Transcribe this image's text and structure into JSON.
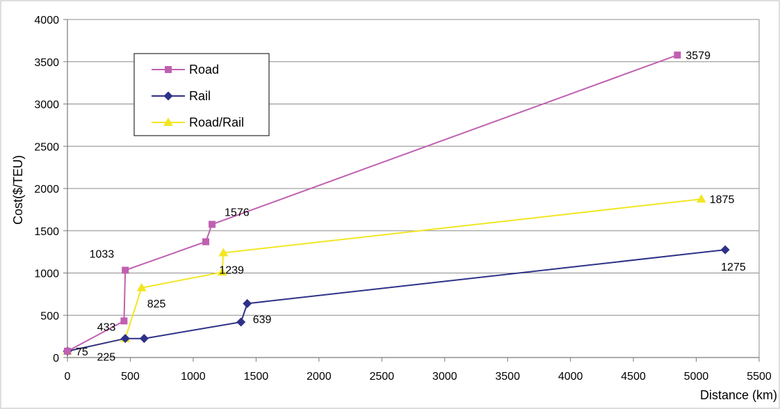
{
  "chart_data": {
    "type": "line",
    "xlabel": "Distance (km)",
    "ylabel": "Cost($/TEU)",
    "xlim": [
      0,
      5500
    ],
    "ylim": [
      0,
      4000
    ],
    "xticks": [
      "0",
      "500",
      "1000",
      "1500",
      "2000",
      "2500",
      "3000",
      "3500",
      "4000",
      "4500",
      "5000",
      "5500"
    ],
    "yticks": [
      "0",
      "500",
      "1000",
      "1500",
      "2000",
      "2500",
      "3000",
      "3500",
      "4000"
    ],
    "grid": "horizontal",
    "legend_position": "top-left",
    "series": [
      {
        "name": "Road",
        "color": "#c060b0",
        "marker": "square",
        "points": [
          {
            "x": 0,
            "y": 75
          },
          {
            "x": 450,
            "y": 433
          },
          {
            "x": 460,
            "y": 1033
          },
          {
            "x": 1100,
            "y": 1370
          },
          {
            "x": 1150,
            "y": 1576
          },
          {
            "x": 4850,
            "y": 3579
          }
        ]
      },
      {
        "name": "Rail",
        "color": "#2e3188",
        "marker": "diamond",
        "points": [
          {
            "x": 0,
            "y": 75
          },
          {
            "x": 460,
            "y": 225
          },
          {
            "x": 610,
            "y": 225
          },
          {
            "x": 1380,
            "y": 420
          },
          {
            "x": 1430,
            "y": 639
          },
          {
            "x": 5230,
            "y": 1275
          }
        ]
      },
      {
        "name": "Road/Rail",
        "color": "#f2e623",
        "marker": "triangle",
        "points": [
          {
            "x": 0,
            "y": 75
          },
          {
            "x": 460,
            "y": 225
          },
          {
            "x": 590,
            "y": 825
          },
          {
            "x": 1230,
            "y": 1010
          },
          {
            "x": 1240,
            "y": 1239
          },
          {
            "x": 5040,
            "y": 1875
          }
        ]
      }
    ],
    "annotations": [
      {
        "text": "3579",
        "x": 4850,
        "y": 3579,
        "anchor": "right"
      },
      {
        "text": "1875",
        "x": 5040,
        "y": 1875,
        "anchor": "right"
      },
      {
        "text": "1576",
        "x": 1150,
        "y": 1576,
        "anchor": "above-right"
      },
      {
        "text": "1033",
        "x": 460,
        "y": 1033,
        "anchor": "above-left"
      },
      {
        "text": "1239",
        "x": 1240,
        "y": 1239,
        "anchor": "below"
      },
      {
        "text": "1275",
        "x": 5230,
        "y": 1275,
        "anchor": "below"
      },
      {
        "text": "825",
        "x": 590,
        "y": 825,
        "anchor": "below-right"
      },
      {
        "text": "639",
        "x": 1430,
        "y": 639,
        "anchor": "below-right"
      },
      {
        "text": "433",
        "x": 450,
        "y": 433,
        "anchor": "left"
      },
      {
        "text": "225",
        "x": 460,
        "y": 225,
        "anchor": "below-left"
      },
      {
        "text": "75",
        "x": 0,
        "y": 75,
        "anchor": "right"
      }
    ]
  }
}
